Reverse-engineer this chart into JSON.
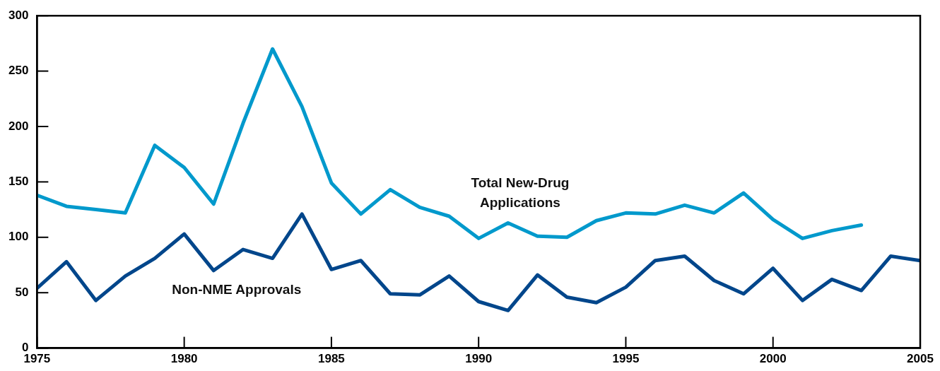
{
  "chart_data": {
    "type": "line",
    "x": [
      1975,
      1976,
      1977,
      1978,
      1979,
      1980,
      1981,
      1982,
      1983,
      1984,
      1985,
      1986,
      1987,
      1988,
      1989,
      1990,
      1991,
      1992,
      1993,
      1994,
      1995,
      1996,
      1997,
      1998,
      1999,
      2000,
      2001,
      2002,
      2003,
      2004,
      2005
    ],
    "series": [
      {
        "name": "Total New-Drug Applications",
        "color": "#0099cc",
        "values": [
          138,
          128,
          125,
          122,
          183,
          163,
          130,
          203,
          270,
          218,
          149,
          121,
          143,
          127,
          119,
          99,
          113,
          101,
          100,
          115,
          122,
          121,
          129,
          122,
          140,
          116,
          99,
          106,
          111,
          null,
          null
        ]
      },
      {
        "name": "Non-NME Approvals",
        "color": "#00468b",
        "values": [
          54,
          78,
          43,
          65,
          81,
          103,
          70,
          89,
          81,
          121,
          71,
          79,
          49,
          48,
          65,
          42,
          34,
          66,
          46,
          41,
          55,
          79,
          83,
          61,
          49,
          72,
          43,
          62,
          52,
          83,
          79
        ]
      }
    ],
    "xlim": [
      1975,
      2005
    ],
    "xticks": [
      1975,
      1980,
      1985,
      1990,
      1995,
      2000,
      2005
    ],
    "ylim": [
      0,
      300
    ],
    "yticks": [
      0,
      50,
      100,
      150,
      200,
      250,
      300
    ],
    "legend": false,
    "marker": "none",
    "line_style": "solid"
  }
}
